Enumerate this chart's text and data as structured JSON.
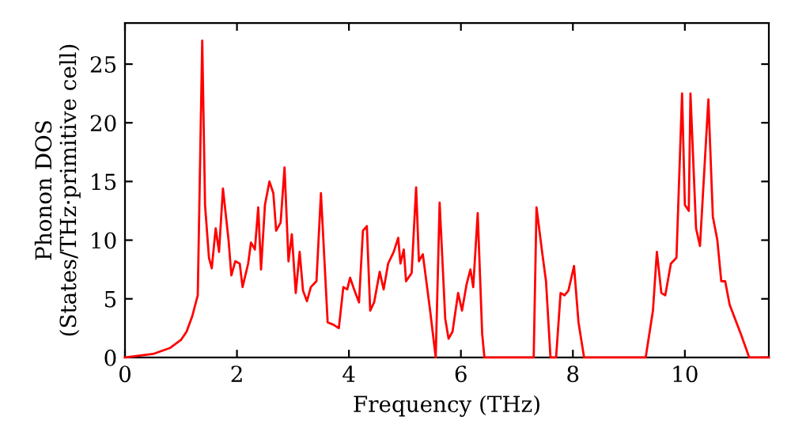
{
  "chart_data": {
    "type": "line",
    "xlabel": "Frequency (THz)",
    "ylabel": "Phonon DOS\n(States/THz·primitive cell)",
    "xlim": [
      0,
      11.5
    ],
    "ylim": [
      0,
      28.5
    ],
    "xticks": [
      0,
      2,
      4,
      6,
      8,
      10
    ],
    "yticks": [
      0,
      5,
      10,
      15,
      20,
      25
    ],
    "grid": false,
    "legend": false,
    "marker": "none",
    "line_style": "solid",
    "series": [
      {
        "color": "#ff0000",
        "x": [
          0,
          0.5,
          0.8,
          1.0,
          1.1,
          1.2,
          1.3,
          1.38,
          1.43,
          1.5,
          1.55,
          1.62,
          1.68,
          1.75,
          1.85,
          1.9,
          1.97,
          2.05,
          2.1,
          2.2,
          2.25,
          2.32,
          2.38,
          2.43,
          2.5,
          2.58,
          2.65,
          2.7,
          2.78,
          2.85,
          2.92,
          2.98,
          3.05,
          3.12,
          3.18,
          3.25,
          3.32,
          3.42,
          3.5,
          3.62,
          3.72,
          3.82,
          3.9,
          3.97,
          4.02,
          4.1,
          4.18,
          4.25,
          4.32,
          4.38,
          4.45,
          4.55,
          4.62,
          4.7,
          4.8,
          4.88,
          4.92,
          4.98,
          5.02,
          5.12,
          5.2,
          5.25,
          5.32,
          5.45,
          5.55,
          5.62,
          5.72,
          5.78,
          5.85,
          5.95,
          6.02,
          6.1,
          6.17,
          6.22,
          6.3,
          6.38,
          6.42,
          7.3,
          7.35,
          7.45,
          7.52,
          7.6,
          7.7,
          7.78,
          7.85,
          7.92,
          8.02,
          8.1,
          8.2,
          9.3,
          9.43,
          9.5,
          9.58,
          9.65,
          9.75,
          9.85,
          9.95,
          10.0,
          10.07,
          10.1,
          10.2,
          10.27,
          10.42,
          10.5,
          10.58,
          10.65,
          10.72,
          10.8,
          11.0,
          11.15,
          11.5
        ],
        "values": [
          0,
          0.3,
          0.8,
          1.5,
          2.2,
          3.5,
          5.3,
          27,
          13,
          8.5,
          7.6,
          11,
          9,
          14.4,
          10,
          7,
          8.2,
          8,
          6,
          8,
          9.8,
          9.2,
          12.8,
          7.5,
          13,
          15,
          14,
          10.8,
          11.5,
          16.2,
          8.2,
          10.5,
          5.5,
          9,
          5.7,
          4.8,
          6,
          6.5,
          14,
          3,
          2.8,
          2.5,
          6,
          5.8,
          6.8,
          5.7,
          4.7,
          10.8,
          11.2,
          4,
          4.7,
          7.3,
          5.8,
          8,
          9,
          10.2,
          8,
          9.2,
          6.5,
          7.2,
          14.5,
          8.2,
          8.8,
          4,
          0,
          13.2,
          3.3,
          1.6,
          2.2,
          5.5,
          4,
          6.2,
          7.5,
          6,
          12.3,
          2,
          0,
          0,
          12.8,
          9,
          6.5,
          0,
          0,
          5.5,
          5.3,
          5.7,
          7.8,
          3,
          0,
          0,
          4,
          9,
          5.5,
          5.3,
          8,
          8.5,
          22.5,
          13,
          12.5,
          22.5,
          11,
          9.5,
          22,
          12,
          10,
          6.5,
          6.5,
          4.5,
          2,
          0,
          0
        ]
      }
    ]
  }
}
